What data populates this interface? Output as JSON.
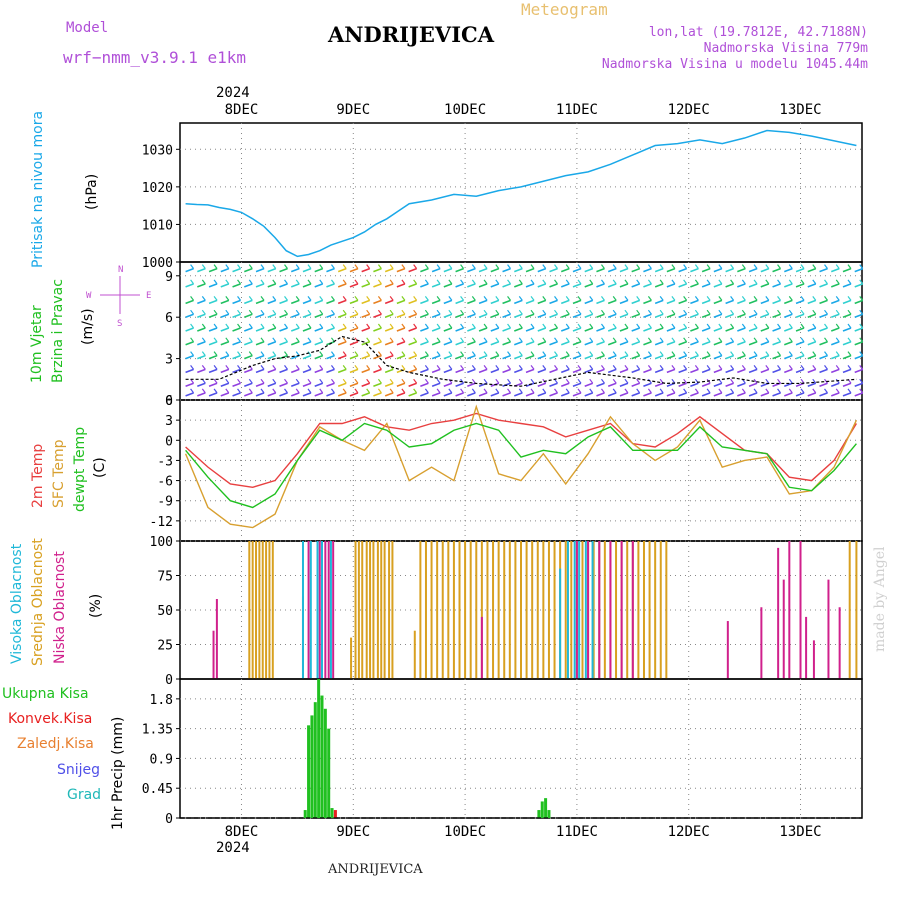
{
  "header": {
    "model_label": "Model",
    "model_value": "wrf−nmm_v3.9.1  e1km",
    "location_title": "ANDRIJEVICA",
    "product": "Meteogram",
    "lonlat": "lon,lat (19.7812E, 42.7188N)",
    "elevation": "Nadmorska Visina 779m",
    "model_elevation": "Nadmorska Visina u modelu 1045.44m",
    "year_top": "2024",
    "year_bottom": "2024",
    "footer_location": "ANDRIJEVICA",
    "watermark": "made by Angel"
  },
  "colors": {
    "pressure": "#1aa8e8",
    "temp2m": "#e84040",
    "sfc_temp": "#d8a030",
    "dewpoint": "#20c020",
    "cloud_high": "#20b8d8",
    "cloud_mid": "#d8a020",
    "cloud_low": "#d0208c",
    "precip_total": "#20c020",
    "precip_conv": "#e82020",
    "grid": "#888888"
  },
  "chart_data": [
    {
      "type": "line",
      "id": "pressure",
      "label_lines": [
        "Pritisak na nivou mora",
        "(hPa)"
      ],
      "x_ticks": [
        "8DEC",
        "9DEC",
        "10DEC",
        "11DEC",
        "12DEC",
        "13DEC"
      ],
      "ylim": [
        1000,
        1037
      ],
      "yticks": [
        1000,
        1010,
        1020,
        1030
      ],
      "grid": true,
      "series": [
        {
          "t": [
            0,
            0.1,
            0.2,
            0.3,
            0.4,
            0.5,
            0.6,
            0.7,
            0.8,
            0.9,
            1.0,
            1.1,
            1.2,
            1.3,
            1.4,
            1.5,
            1.6,
            1.7,
            1.8,
            1.9,
            2.0,
            2.2,
            2.4,
            2.6,
            2.8,
            3.0,
            3.2,
            3.4,
            3.6,
            3.8,
            4.0,
            4.2,
            4.4,
            4.6,
            4.8,
            5.0,
            5.2,
            5.4,
            5.6,
            6.0
          ],
          "v": [
            1015.5,
            1015.3,
            1015.2,
            1014.5,
            1014.0,
            1013.2,
            1011.5,
            1009.5,
            1006.5,
            1003.0,
            1001.5,
            1002.0,
            1003.0,
            1004.5,
            1005.5,
            1006.5,
            1008.0,
            1010.0,
            1011.5,
            1013.5,
            1015.5,
            1016.5,
            1018.0,
            1017.5,
            1019.0,
            1020.0,
            1021.5,
            1023.0,
            1024.0,
            1026.0,
            1028.5,
            1031.0,
            1031.5,
            1032.5,
            1031.5,
            1033.0,
            1035.0,
            1034.5,
            1033.5,
            1031.0
          ]
        }
      ]
    },
    {
      "type": "line",
      "id": "wind",
      "label_lines": [
        "10m Vjetar",
        "Brzina i Pravac",
        "(m/s)"
      ],
      "compass_lines": [
        "N",
        "<—|—>",
        "W  —  E",
        "S"
      ],
      "ylim": [
        0,
        10
      ],
      "yticks": [
        0,
        3,
        6,
        9
      ],
      "grid": true,
      "series": [
        {
          "t": [
            0,
            0.3,
            0.6,
            0.8,
            1.0,
            1.2,
            1.4,
            1.6,
            1.8,
            2.0,
            2.3,
            2.6,
            3.0,
            3.3,
            3.6,
            4.0,
            4.3,
            4.6,
            4.9,
            5.2,
            5.5,
            6.0
          ],
          "v": [
            1.5,
            1.5,
            2.5,
            3.0,
            3.2,
            3.6,
            4.6,
            4.2,
            2.5,
            2.0,
            1.5,
            1.2,
            1.0,
            1.5,
            2.0,
            1.6,
            1.2,
            1.3,
            1.6,
            1.2,
            1.2,
            1.5
          ]
        }
      ]
    },
    {
      "type": "line",
      "id": "temperature",
      "label_lines": [
        "2m Temp",
        "SFC Temp",
        "dewpt Temp",
        "(C)"
      ],
      "ylim": [
        -15,
        6
      ],
      "yticks": [
        -12,
        -9,
        -6,
        -3,
        0,
        3,
        6
      ],
      "grid": true,
      "series": [
        {
          "name": "2m Temp",
          "t": [
            0,
            0.2,
            0.4,
            0.6,
            0.8,
            1.0,
            1.2,
            1.4,
            1.6,
            1.8,
            2.0,
            2.2,
            2.4,
            2.6,
            2.8,
            3.0,
            3.2,
            3.4,
            3.6,
            3.8,
            4.0,
            4.2,
            4.4,
            4.6,
            4.8,
            5.0,
            5.2,
            5.4,
            5.6,
            5.8,
            6.0
          ],
          "v": [
            -1,
            -4,
            -6.5,
            -7,
            -6,
            -2,
            2.5,
            2.5,
            3.5,
            2.0,
            1.5,
            2.5,
            3.0,
            4.0,
            3.0,
            2.5,
            2.0,
            0.5,
            1.5,
            2.5,
            -0.5,
            -1.0,
            1.0,
            3.5,
            1.0,
            -1.5,
            -2.0,
            -5.5,
            -6.0,
            -3.0,
            2.5
          ]
        },
        {
          "name": "SFC Temp",
          "t": [
            0,
            0.2,
            0.4,
            0.6,
            0.8,
            1.0,
            1.2,
            1.4,
            1.6,
            1.8,
            2.0,
            2.2,
            2.4,
            2.6,
            2.8,
            3.0,
            3.2,
            3.4,
            3.6,
            3.8,
            4.0,
            4.2,
            4.4,
            4.6,
            4.8,
            5.0,
            5.2,
            5.4,
            5.6,
            5.8,
            6.0
          ],
          "v": [
            -2,
            -10,
            -12.5,
            -13,
            -11,
            -3,
            2.0,
            0.0,
            -1.5,
            2.5,
            -6.0,
            -4.0,
            -6.0,
            5.0,
            -5.0,
            -6.0,
            -2.0,
            -6.5,
            -2.0,
            3.5,
            -0.5,
            -3.0,
            -1.0,
            3.0,
            -4.0,
            -3.0,
            -2.5,
            -8.0,
            -7.5,
            -4.0,
            3.0
          ]
        },
        {
          "name": "dewpt Temp",
          "t": [
            0,
            0.2,
            0.4,
            0.6,
            0.8,
            1.0,
            1.2,
            1.4,
            1.6,
            1.8,
            2.0,
            2.2,
            2.4,
            2.6,
            2.8,
            3.0,
            3.2,
            3.4,
            3.6,
            3.8,
            4.0,
            4.2,
            4.4,
            4.6,
            4.8,
            5.0,
            5.2,
            5.4,
            5.6,
            5.8,
            6.0
          ],
          "v": [
            -1.5,
            -5.5,
            -9.0,
            -10.0,
            -8.0,
            -3.0,
            1.5,
            0.0,
            2.5,
            1.5,
            -1.0,
            -0.5,
            1.5,
            2.5,
            1.5,
            -2.5,
            -1.5,
            -2.0,
            0.5,
            2.0,
            -1.5,
            -1.5,
            -1.5,
            2.0,
            -1.0,
            -1.5,
            -2.0,
            -7.0,
            -7.5,
            -4.5,
            -0.5
          ]
        }
      ]
    },
    {
      "type": "bar",
      "id": "clouds",
      "label_lines": [
        "Visoka Oblacnost",
        "Srednja Oblacnost",
        "Niska Oblacnost",
        "(%)"
      ],
      "ylim": [
        0,
        100
      ],
      "yticks": [
        0,
        25,
        50,
        75,
        100
      ],
      "grid": true,
      "series": [
        {
          "name": "Srednja Oblacnost",
          "t": [
            0.57,
            0.6,
            0.63,
            0.66,
            0.69,
            0.72,
            0.75,
            0.78,
            1.48,
            1.52,
            1.55,
            1.58,
            1.62,
            1.65,
            1.68,
            1.72,
            1.75,
            1.78,
            1.82,
            1.85,
            2.05,
            2.1,
            2.15,
            2.2,
            2.25,
            2.3,
            2.35,
            2.4,
            2.45,
            2.5,
            2.55,
            2.6,
            2.65,
            2.7,
            2.75,
            2.8,
            2.85,
            2.9,
            2.95,
            3.0,
            3.05,
            3.1,
            3.15,
            3.2,
            3.25,
            3.3,
            3.35,
            3.4,
            3.45,
            3.5,
            3.55,
            3.6,
            3.65,
            3.7,
            3.75,
            3.8,
            3.85,
            3.9,
            3.95,
            4.0,
            4.05,
            4.1,
            4.15,
            4.2,
            4.25,
            4.3,
            5.94,
            6.0
          ],
          "v": [
            100,
            100,
            100,
            100,
            100,
            100,
            100,
            100,
            30,
            100,
            100,
            100,
            100,
            100,
            100,
            100,
            100,
            100,
            100,
            100,
            35,
            100,
            100,
            100,
            100,
            100,
            100,
            100,
            100,
            100,
            100,
            100,
            100,
            100,
            100,
            100,
            100,
            100,
            100,
            100,
            100,
            100,
            100,
            100,
            100,
            100,
            100,
            100,
            100,
            100,
            100,
            100,
            100,
            100,
            100,
            100,
            100,
            100,
            100,
            100,
            100,
            100,
            100,
            100,
            100,
            100,
            100,
            100
          ]
        },
        {
          "name": "Niska Oblacnost",
          "t": [
            0.25,
            0.28,
            1.05,
            1.1,
            1.2,
            1.25,
            1.28,
            1.32,
            2.65,
            3.5,
            3.6,
            3.7,
            3.8,
            3.9,
            4.0,
            4.85,
            5.15,
            5.3,
            5.35,
            5.4,
            5.5,
            5.55,
            5.62,
            5.75,
            5.85
          ],
          "v": [
            35,
            58,
            60,
            100,
            100,
            100,
            100,
            100,
            45,
            100,
            100,
            100,
            100,
            100,
            100,
            42,
            52,
            95,
            72,
            100,
            100,
            45,
            28,
            72,
            52
          ]
        },
        {
          "name": "Visoka Oblacnost",
          "t": [
            1.05,
            1.12,
            1.18,
            1.22,
            1.3,
            3.35,
            3.42,
            3.48,
            3.52,
            3.58,
            3.64
          ],
          "v": [
            100,
            100,
            100,
            100,
            100,
            80,
            100,
            100,
            100,
            100,
            100
          ]
        }
      ]
    },
    {
      "type": "bar",
      "id": "precip",
      "label_lines": [
        "1hr Precip (mm)"
      ],
      "legend": [
        "Ukupna  Kisa",
        "Konvek.Kisa",
        "Zaledj.Kisa",
        "Snijeg",
        "Grad"
      ],
      "ylim": [
        0,
        2.1
      ],
      "yticks": [
        0,
        0.45,
        0.9,
        1.35,
        1.8
      ],
      "grid": true,
      "series": [
        {
          "name": "Ukupna  Kisa",
          "t": [
            1.07,
            1.1,
            1.13,
            1.16,
            1.19,
            1.22,
            1.25,
            1.28,
            1.31,
            3.16,
            3.19,
            3.22,
            3.25
          ],
          "v": [
            0.12,
            1.4,
            1.55,
            1.75,
            2.1,
            1.85,
            1.65,
            1.35,
            0.15,
            0.12,
            0.25,
            0.3,
            0.12
          ]
        },
        {
          "name": "Konvek.Kisa",
          "t": [
            1.34
          ],
          "v": [
            0.12
          ]
        }
      ]
    }
  ]
}
